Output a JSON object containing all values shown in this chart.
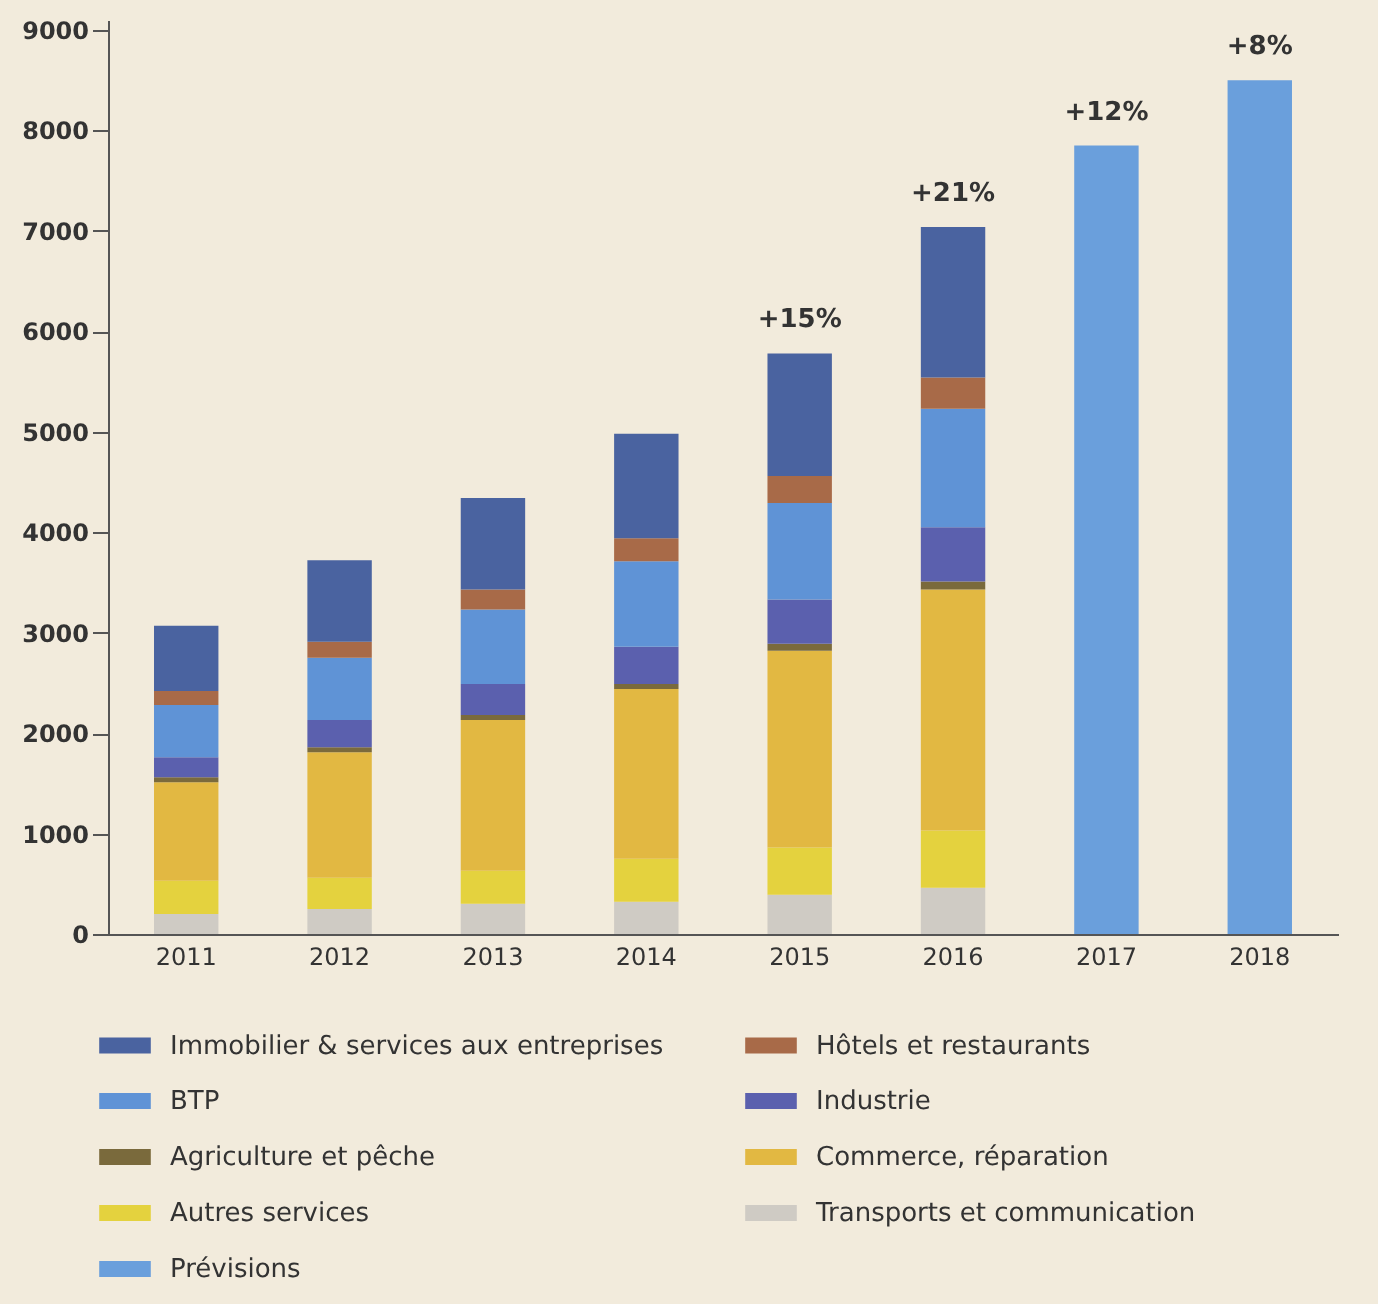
{
  "chart_data": {
    "type": "bar",
    "stacked": true,
    "categories": [
      "2011",
      "2012",
      "2013",
      "2014",
      "2015",
      "2016",
      "2017",
      "2018"
    ],
    "series": [
      {
        "name": "Prévisions",
        "color": "#6a9fdc",
        "values": [
          null,
          null,
          null,
          null,
          null,
          null,
          7850,
          8500
        ]
      },
      {
        "name": "Transports et communication",
        "color": "#cfcbc4",
        "values": [
          200,
          250,
          300,
          320,
          390,
          460,
          null,
          null
        ]
      },
      {
        "name": "Autres services",
        "color": "#e4d23e",
        "values": [
          330,
          310,
          330,
          430,
          470,
          570,
          null,
          null
        ]
      },
      {
        "name": "Commerce, réparation",
        "color": "#e2b842",
        "values": [
          980,
          1250,
          1500,
          1690,
          1960,
          2400,
          null,
          null
        ]
      },
      {
        "name": "Agriculture et pêche",
        "color": "#7a6a3c",
        "values": [
          50,
          50,
          50,
          50,
          70,
          80,
          null,
          null
        ]
      },
      {
        "name": "Industrie",
        "color": "#5b60ae",
        "values": [
          200,
          270,
          310,
          370,
          440,
          540,
          null,
          null
        ]
      },
      {
        "name": "BTP",
        "color": "#5f93d6",
        "values": [
          520,
          620,
          740,
          850,
          960,
          1180,
          null,
          null
        ]
      },
      {
        "name": "Hôtels et restaurants",
        "color": "#a86a48",
        "values": [
          140,
          160,
          200,
          230,
          270,
          310,
          null,
          null
        ]
      },
      {
        "name": "Immobilier & services aux entreprises",
        "color": "#4a63a0",
        "values": [
          650,
          810,
          910,
          1040,
          1220,
          1500,
          null,
          null
        ]
      }
    ],
    "ylim": [
      0,
      9100
    ],
    "yticks": [
      0,
      1000,
      2000,
      3000,
      4000,
      5000,
      6000,
      7000,
      8000,
      9000
    ],
    "annotations": [
      {
        "text": "+15%",
        "x": "2015",
        "y": 5780
      },
      {
        "text": "+21%",
        "x": "2016",
        "y": 7040
      },
      {
        "text": "+12%",
        "x": "2017",
        "y": 7850
      },
      {
        "text": "+8%",
        "x": "2018",
        "y": 8500
      }
    ],
    "legend": "bottom"
  }
}
